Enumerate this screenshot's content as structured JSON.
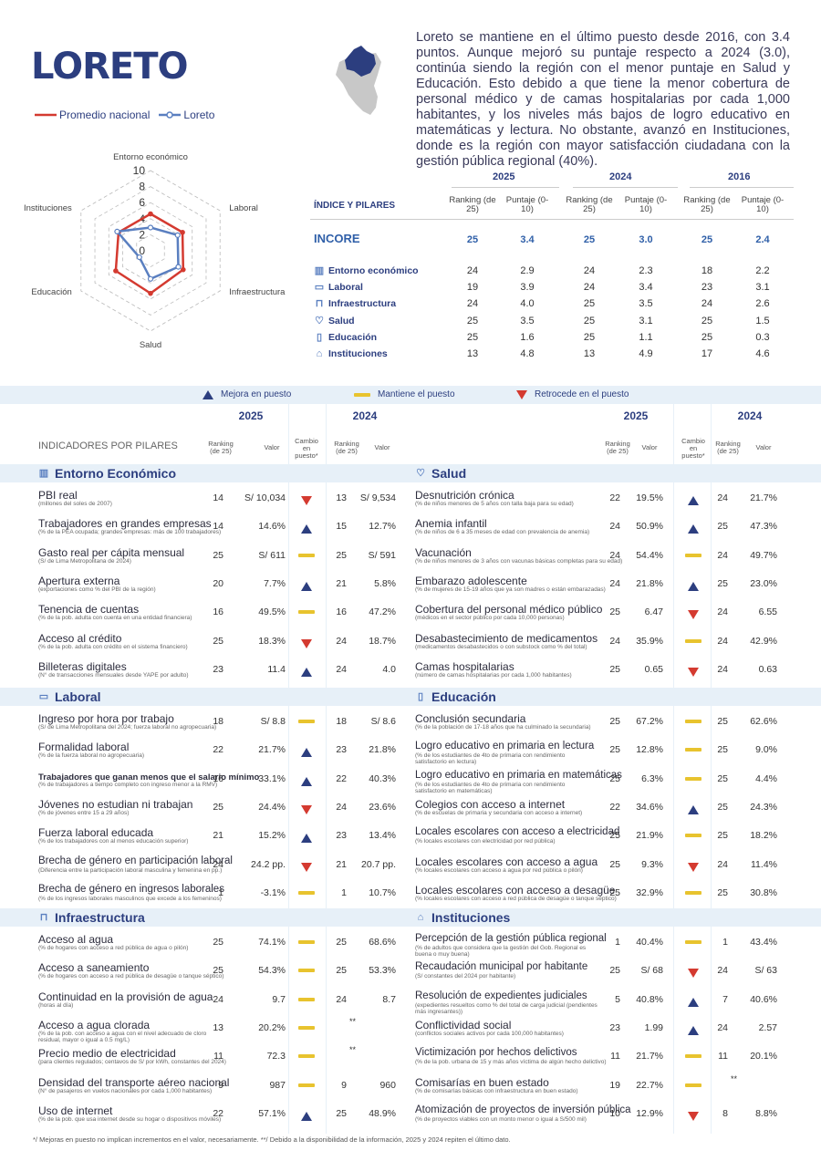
{
  "region": "LORETO",
  "legend": {
    "national": "Promedio nacional",
    "region": "Loreto"
  },
  "colors": {
    "national": "#d43a30",
    "region": "#5a7fc0",
    "navy": "#2c3e7f",
    "dash": "#e8c32e"
  },
  "radar": {
    "axes": [
      "Entorno económico",
      "Laboral",
      "Infraestructura",
      "Salud",
      "Educación",
      "Instituciones"
    ],
    "ticks": [
      "10",
      "8",
      "6",
      "4",
      "2",
      "0"
    ],
    "national": [
      4.6,
      4.6,
      4.7,
      5.3,
      5.0,
      4.6
    ],
    "loreto": [
      2.9,
      3.9,
      4.0,
      3.5,
      1.6,
      4.8
    ]
  },
  "summary": "Loreto se mantiene en el último puesto desde 2016, con 3.4 puntos. Aunque mejoró su puntaje respecto a 2024 (3.0), continúa siendo la región con el menor puntaje en Salud y Educación. Esto debido a que tiene la menor cobertura de personal médico y de camas hospitalarias por cada 1,000 habitantes, y los niveles más bajos de logro educativo en matemáticas y lectura. No obstante, avanzó en Instituciones, donde es la región con mayor satisfacción ciudadana con la gestión pública regional (40%).",
  "index": {
    "years": [
      "2025",
      "2024",
      "2016"
    ],
    "header": "ÍNDICE Y PILARES",
    "rank_label": "Ranking (de 25)",
    "score_label": "Puntaje (0-10)",
    "incore": {
      "label": "INCORE",
      "vals": [
        "25",
        "3.4",
        "25",
        "3.0",
        "25",
        "2.4"
      ]
    },
    "rows": [
      {
        "icon": "chart-icon",
        "glyph": "▥",
        "label": "Entorno económico",
        "vals": [
          "24",
          "2.9",
          "24",
          "2.3",
          "18",
          "2.2"
        ]
      },
      {
        "icon": "briefcase-icon",
        "glyph": "▭",
        "label": "Laboral",
        "vals": [
          "19",
          "3.9",
          "24",
          "3.4",
          "23",
          "3.1"
        ]
      },
      {
        "icon": "faucet-icon",
        "glyph": "⊓",
        "label": "Infraestructura",
        "vals": [
          "24",
          "4.0",
          "25",
          "3.5",
          "24",
          "2.6"
        ]
      },
      {
        "icon": "heart-icon",
        "glyph": "♡",
        "label": "Salud",
        "vals": [
          "25",
          "3.5",
          "25",
          "3.1",
          "25",
          "1.5"
        ]
      },
      {
        "icon": "book-icon",
        "glyph": "▯",
        "label": "Educación",
        "vals": [
          "25",
          "1.6",
          "25",
          "1.1",
          "25",
          "0.3"
        ]
      },
      {
        "icon": "institution-icon",
        "glyph": "⌂",
        "label": "Instituciones",
        "vals": [
          "13",
          "4.8",
          "13",
          "4.9",
          "17",
          "4.6"
        ]
      }
    ]
  },
  "key": {
    "up": "Mejora en puesto",
    "same": "Mantiene el puesto",
    "down": "Retrocede en el puesto"
  },
  "table": {
    "title": "INDICADORES POR PILARES",
    "y1": "2025",
    "y2": "2024",
    "rank": "Ranking (de 25)",
    "value": "Valor",
    "change": "Cambio en puesto*"
  },
  "left": [
    {
      "section": "Entorno Económico",
      "icon": "chart-icon",
      "glyph": "▥",
      "rows": [
        {
          "n": "PBI real",
          "s": "(millones del soles de 2007)",
          "r": "14",
          "v": "S/ 10,034",
          "ch": "down",
          "r2": "13",
          "v2": "S/ 9,534"
        },
        {
          "n": "Trabajadores en grandes empresas",
          "s": "(% de la PEA ocupada; grandes empresas: más de 100 trabajadores)",
          "r": "14",
          "v": "14.6%",
          "ch": "up",
          "r2": "15",
          "v2": "12.7%"
        },
        {
          "n": "Gasto real per cápita mensual",
          "s": "(S/ de Lima Metropolitana de 2024)",
          "r": "25",
          "v": "S/ 611",
          "ch": "same",
          "r2": "25",
          "v2": "S/ 591"
        },
        {
          "n": "Apertura externa",
          "s": "(exportaciones como % del PBI de la región)",
          "r": "20",
          "v": "7.7%",
          "ch": "up",
          "r2": "21",
          "v2": "5.8%"
        },
        {
          "n": "Tenencia de cuentas",
          "s": " (% de la pob. adulta con cuenta en una entidad financiera)",
          "r": "16",
          "v": "49.5%",
          "ch": "same",
          "r2": "16",
          "v2": "47.2%"
        },
        {
          "n": "Acceso al crédito",
          "s": "(% de la pob. adulta con crédito en el sistema financiero)",
          "r": "25",
          "v": "18.3%",
          "ch": "down",
          "r2": "24",
          "v2": "18.7%"
        },
        {
          "n": "Billeteras digitales",
          "s": "(N° de transacciones mensuales desde YAPE por adulto)",
          "r": "23",
          "v": "11.4",
          "ch": "up",
          "r2": "24",
          "v2": "4.0"
        }
      ]
    },
    {
      "section": "Laboral",
      "icon": "briefcase-icon",
      "glyph": "▭",
      "rows": [
        {
          "n": "Ingreso por hora por trabajo",
          "s": "(S/ de Lima Metropolitana del 2024; fuerza laboral no agropecuaria)",
          "r": "18",
          "v": "S/ 8.8",
          "ch": "same",
          "r2": "18",
          "v2": "S/ 8.6"
        },
        {
          "n": "Formalidad laboral",
          "s": "(% de la fuerza laboral no agropecuaria)",
          "r": "22",
          "v": "21.7%",
          "ch": "up",
          "r2": "23",
          "v2": "21.8%"
        },
        {
          "n": "Trabajadores que ganan menos que el salario mínimo",
          "s": "(% de trabajadores a tiempo completo con ingreso menor a la RMV)",
          "r": "16",
          "v": "33.1%",
          "ch": "up",
          "r2": "22",
          "v2": "40.3%",
          "small": true
        },
        {
          "n": "Jóvenes no estudian ni trabajan",
          "s": "(% de jóvenes entre 15 a 29 años)",
          "r": "25",
          "v": "24.4%",
          "ch": "down",
          "r2": "24",
          "v2": "23.6%"
        },
        {
          "n": "Fuerza laboral educada",
          "s": "(% de los trabajadores con al menos educación superior)",
          "r": "21",
          "v": "15.2%",
          "ch": "up",
          "r2": "23",
          "v2": "13.4%"
        },
        {
          "n": "Brecha de género en participación laboral",
          "s": "(Diferencia entre la participación laboral masculina y femenina en pp.)",
          "r": "24",
          "v": "24.2 pp.",
          "ch": "down",
          "r2": "21",
          "v2": "20.7 pp.",
          "md": true
        },
        {
          "n": "Brecha de género en ingresos laborales",
          "s": "(% de los ingresos laborales masculinos que excede a los femeninos)",
          "r": "1",
          "v": "-3.1%",
          "ch": "same",
          "r2": "1",
          "v2": "10.7%",
          "md": true
        }
      ]
    },
    {
      "section": "Infraestructura",
      "icon": "faucet-icon",
      "glyph": "⊓",
      "rows": [
        {
          "n": "Acceso al agua",
          "s": "(% de hogares con acceso a red pública de agua o pilón)",
          "r": "25",
          "v": "74.1%",
          "ch": "same",
          "r2": "25",
          "v2": "68.6%"
        },
        {
          "n": "Acceso a saneamiento",
          "s": "(% de hogares con acceso a red pública de desagüe o tanque séptico)",
          "r": "25",
          "v": "54.3%",
          "ch": "same",
          "r2": "25",
          "v2": "53.3%"
        },
        {
          "n": "Continuidad en la provisión de agua",
          "s": "(horas al día)",
          "r": "24",
          "v": "9.7",
          "ch": "same",
          "r2": "24",
          "v2": "8.7"
        },
        {
          "n": "Acceso a agua clorada",
          "s": "(% de la pob. con acceso a agua con el nivel adecuado de cloro residual, mayor o igual a 0.5 mg/L)",
          "r": "13",
          "v": "20.2%",
          "ch": "same",
          "r2": "**",
          "v2": ""
        },
        {
          "n": "Precio medio de electricidad",
          "s": "(para clientes regulados; centavos de S/ por kWh, constantes del 2024)",
          "r": "11",
          "v": "72.3",
          "ch": "same",
          "r2": "**",
          "v2": ""
        },
        {
          "n": "Densidad del transporte aéreo nacional",
          "s": "(N° de pasajeros en vuelos nacionales por cada 1,000 habitantes)",
          "r": "9",
          "v": "987",
          "ch": "same",
          "r2": "9",
          "v2": "960"
        },
        {
          "n": "Uso de internet",
          "s": "(% de la pob. que usa internet desde su hogar o dispositivos móviles)",
          "r": "22",
          "v": "57.1%",
          "ch": "up",
          "r2": "25",
          "v2": "48.9%"
        }
      ]
    }
  ],
  "right": [
    {
      "section": "Salud",
      "icon": "heart-icon",
      "glyph": "♡",
      "rows": [
        {
          "n": "Desnutrición crónica",
          "s": "(% de niños menores de 5 años con talla baja para su edad)",
          "r": "22",
          "v": "19.5%",
          "ch": "up",
          "r2": "24",
          "v2": "21.7%"
        },
        {
          "n": "Anemia infantil",
          "s": " (% de niños de 6 a 35 meses de edad con prevalencia de anemia)",
          "r": "24",
          "v": "50.9%",
          "ch": "up",
          "r2": "25",
          "v2": "47.3%"
        },
        {
          "n": "Vacunación",
          "s": "(% de niños menores de 3 años con vacunas básicas completas para su edad)",
          "r": "24",
          "v": "54.4%",
          "ch": "same",
          "r2": "24",
          "v2": "49.7%"
        },
        {
          "n": "Embarazo adolescente",
          "s": "(% de mujeres de 15-19 años que ya son madres o están embarazadas)",
          "r": "24",
          "v": "21.8%",
          "ch": "up",
          "r2": "25",
          "v2": "23.0%"
        },
        {
          "n": "Cobertura del personal médico público",
          "s": "(médicos en el sector público por cada 10,000 personas)",
          "r": "25",
          "v": "6.47",
          "ch": "down",
          "r2": "24",
          "v2": "6.55"
        },
        {
          "n": "Desabastecimiento de medicamentos",
          "s": "(medicamentos desabastecidos o con substock como % del total)",
          "r": "24",
          "v": "35.9%",
          "ch": "same",
          "r2": "24",
          "v2": "42.9%"
        },
        {
          "n": "Camas hospitalarias",
          "s": "(número de camas hospitalarias por cada 1,000 habitantes)",
          "r": "25",
          "v": "0.65",
          "ch": "down",
          "r2": "24",
          "v2": "0.63"
        }
      ]
    },
    {
      "section": "Educación",
      "icon": "book-icon",
      "glyph": "▯",
      "rows": [
        {
          "n": "Conclusión secundaria",
          "s": "(% de la población de 17-18 años que ha culminado la secundaria)",
          "r": "25",
          "v": "67.2%",
          "ch": "same",
          "r2": "25",
          "v2": "62.6%"
        },
        {
          "n": "Logro educativo en primaria en lectura",
          "s": "(% de los estudiantes de 4to de primaria con rendimiento satisfactorio en lectura)",
          "r": "25",
          "v": "12.8%",
          "ch": "same",
          "r2": "25",
          "v2": "9.0%",
          "md": true
        },
        {
          "n": "Logro educativo en primaria en matemáticas",
          "s": "(% de los estudiantes de 4to de primaria con rendimiento satisfactorio en matemáticas)",
          "r": "25",
          "v": "6.3%",
          "ch": "same",
          "r2": "25",
          "v2": "4.4%",
          "md": true
        },
        {
          "n": "Colegios con acceso a internet",
          "s": " (% de escuelas de primaria y secundaria con acceso a internet)",
          "r": "22",
          "v": "34.6%",
          "ch": "up",
          "r2": "25",
          "v2": "24.3%"
        },
        {
          "n": "Locales escolares con acceso a electricidad",
          "s": "(% locales escolares con electricidad por red pública)",
          "r": "25",
          "v": "21.9%",
          "ch": "same",
          "r2": "25",
          "v2": "18.2%",
          "md": true
        },
        {
          "n": "Locales escolares con acceso a agua",
          "s": "(% locales escolares con acceso a agua por red pública o pilón)",
          "r": "25",
          "v": "9.3%",
          "ch": "down",
          "r2": "24",
          "v2": "11.4%"
        },
        {
          "n": "Locales escolares con acceso a desagüe",
          "s": "(% locales escolares con acceso a red pública de desagüe o tanque séptico)",
          "r": "25",
          "v": "32.9%",
          "ch": "same",
          "r2": "25",
          "v2": "30.8%"
        }
      ]
    },
    {
      "section": "Instituciones",
      "icon": "institution-icon",
      "glyph": "⌂",
      "rows": [
        {
          "n": "Percepción de la gestión pública regional",
          "s": "(% de adultos que considera que la gestión del Gob. Regional es buena o muy buena)",
          "r": "1",
          "v": "40.4%",
          "ch": "same",
          "r2": "1",
          "v2": "43.4%",
          "md": true
        },
        {
          "n": "Recaudación municipal por habitante",
          "s": "(S/ constantes del 2024 por habitante)",
          "r": "25",
          "v": "S/ 68",
          "ch": "down",
          "r2": "24",
          "v2": "S/ 63",
          "md": true
        },
        {
          "n": "Resolución de expedientes judiciales",
          "s": "(expedientes resueltos como % del total de carga judicial (pendientes más ingresantes))",
          "r": "5",
          "v": "40.8%",
          "ch": "up",
          "r2": "7",
          "v2": "40.6%",
          "md": true
        },
        {
          "n": "Conflictividad social",
          "s": "(conflictos sociales activos por cada 100,000 habitantes)",
          "r": "23",
          "v": "1.99",
          "ch": "up",
          "r2": "24",
          "v2": "2.57"
        },
        {
          "n": "Victimización por hechos delictivos",
          "s": "(% de la pob. urbana de 15 y más años víctima de algún hecho delictivo)",
          "r": "11",
          "v": "21.7%",
          "ch": "same",
          "r2": "11",
          "v2": "20.1%",
          "md": true
        },
        {
          "n": "Comisarías en buen estado",
          "s": " (% de comisarías básicas con infraestructura en buen estado)",
          "r": "19",
          "v": "22.7%",
          "ch": "same",
          "r2": "**",
          "v2": ""
        },
        {
          "n": "Atomización de proyectos de inversión pública",
          "s": "(% de proyectos viables con un monto menor o igual a S/500 mil)",
          "r": "10",
          "v": "12.9%",
          "ch": "down",
          "r2": "8",
          "v2": "8.8%",
          "md": true
        }
      ]
    }
  ],
  "footnote": "*/ Mejoras en puesto no implican incrementos en el valor, necesariamente. **/ Debido a la disponibilidad de la información, 2025 y 2024 repiten el último dato."
}
